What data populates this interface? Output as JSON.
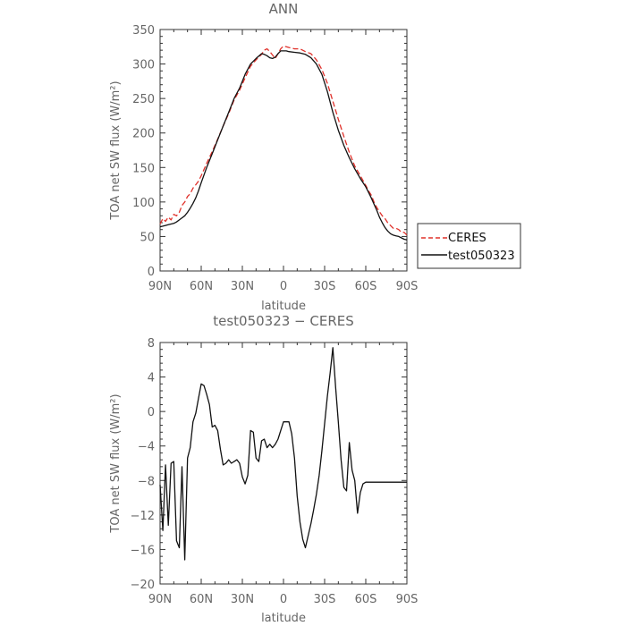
{
  "chart_data": [
    {
      "type": "line",
      "title": "ANN",
      "xlabel": "latitude",
      "ylabel": "TOA net SW flux (W/m²)",
      "xlim": [
        -90,
        90
      ],
      "ylim": [
        0,
        350
      ],
      "x_ticks": [
        -90,
        -60,
        -30,
        0,
        30,
        60,
        90
      ],
      "x_tick_labels": [
        "90N",
        "60N",
        "30N",
        "0",
        "30S",
        "60S",
        "90S"
      ],
      "y_ticks": [
        0,
        50,
        100,
        150,
        200,
        250,
        300,
        350
      ],
      "y_tick_labels": [
        "0",
        "50",
        "100",
        "150",
        "200",
        "250",
        "300",
        "350"
      ],
      "legend": {
        "placement": "right"
      },
      "series": [
        {
          "name": "CERES",
          "color": "#e0302a",
          "dash": "dashed",
          "x": [
            -90,
            -88,
            -86,
            -84,
            -82,
            -80,
            -78,
            -76,
            -74,
            -72,
            -70,
            -68,
            -66,
            -64,
            -62,
            -60,
            -56,
            -52,
            -48,
            -44,
            -40,
            -36,
            -32,
            -28,
            -24,
            -20,
            -16,
            -14,
            -12,
            -10,
            -8,
            -6,
            -4,
            -2,
            0,
            2,
            4,
            8,
            12,
            16,
            20,
            24,
            28,
            32,
            36,
            40,
            44,
            48,
            52,
            56,
            60,
            62,
            64,
            66,
            68,
            70,
            72,
            74,
            76,
            78,
            80,
            82,
            84,
            86,
            88,
            90
          ],
          "values": [
            68,
            76,
            72,
            78,
            74,
            82,
            80,
            85,
            95,
            100,
            108,
            112,
            120,
            125,
            130,
            138,
            156,
            173,
            191,
            210,
            228,
            248,
            262,
            280,
            297,
            306,
            314,
            320,
            322,
            318,
            313,
            308,
            315,
            322,
            326,
            325,
            324,
            322,
            322,
            318,
            315,
            306,
            292,
            272,
            246,
            220,
            195,
            172,
            152,
            138,
            124,
            116,
            110,
            100,
            92,
            86,
            80,
            76,
            70,
            66,
            62,
            62,
            60,
            56,
            56,
            52
          ]
        },
        {
          "name": "test050323",
          "color": "#111111",
          "dash": "solid",
          "x": [
            -90,
            -88,
            -86,
            -84,
            -82,
            -80,
            -78,
            -76,
            -74,
            -72,
            -70,
            -68,
            -66,
            -64,
            -62,
            -60,
            -56,
            -52,
            -48,
            -44,
            -40,
            -36,
            -32,
            -28,
            -24,
            -20,
            -16,
            -14,
            -12,
            -10,
            -8,
            -6,
            -4,
            -2,
            0,
            2,
            4,
            8,
            12,
            16,
            20,
            24,
            28,
            32,
            36,
            40,
            44,
            48,
            52,
            56,
            60,
            62,
            64,
            66,
            68,
            70,
            72,
            74,
            76,
            78,
            80,
            82,
            84,
            86,
            88,
            90
          ],
          "values": [
            64,
            65,
            66,
            67,
            68,
            69,
            71,
            74,
            77,
            80,
            85,
            91,
            98,
            106,
            116,
            128,
            150,
            170,
            190,
            210,
            230,
            250,
            265,
            285,
            300,
            308,
            315,
            314,
            312,
            309,
            308,
            310,
            315,
            319,
            319,
            319,
            318,
            317,
            316,
            314,
            309,
            300,
            285,
            260,
            230,
            204,
            182,
            164,
            148,
            134,
            122,
            114,
            106,
            97,
            88,
            78,
            70,
            63,
            58,
            54,
            52,
            51,
            50,
            48,
            46,
            45
          ]
        }
      ]
    },
    {
      "type": "line",
      "title": "test050323 − CERES",
      "xlabel": "latitude",
      "ylabel": "TOA net SW flux (W/m²)",
      "xlim": [
        -90,
        90
      ],
      "ylim": [
        -20,
        8
      ],
      "x_ticks": [
        -90,
        -60,
        -30,
        0,
        30,
        60,
        90
      ],
      "x_tick_labels": [
        "90N",
        "60N",
        "30N",
        "0",
        "30S",
        "60S",
        "90S"
      ],
      "y_ticks": [
        -20,
        -16,
        -12,
        -8,
        -4,
        0,
        4,
        8
      ],
      "y_tick_labels": [
        "−20",
        "−16",
        "−12",
        "−8",
        "−4",
        "0",
        "4",
        "8"
      ],
      "series": [
        {
          "color": "#111111",
          "dash": "solid",
          "x": [
            -90,
            -88,
            -86,
            -84,
            -82,
            -80,
            -78,
            -76,
            -74,
            -72,
            -70,
            -68,
            -66,
            -64,
            -62,
            -60,
            -58,
            -56,
            -54,
            -52,
            -50,
            -48,
            -46,
            -44,
            -42,
            -40,
            -38,
            -36,
            -34,
            -32,
            -30,
            -28,
            -26,
            -24,
            -22,
            -20,
            -18,
            -16,
            -14,
            -12,
            -10,
            -8,
            -6,
            -4,
            -2,
            0,
            2,
            4,
            6,
            8,
            10,
            12,
            14,
            16,
            18,
            20,
            22,
            24,
            26,
            28,
            30,
            32,
            34,
            36,
            38,
            40,
            42,
            44,
            46,
            48,
            50,
            52,
            54,
            56,
            58,
            60,
            62,
            64,
            66,
            68,
            70,
            72,
            74,
            76,
            78,
            80,
            82,
            84,
            86,
            88,
            90
          ],
          "values": [
            -8.5,
            -13.8,
            -6.2,
            -13.2,
            -6.0,
            -5.8,
            -15.0,
            -15.8,
            -6.4,
            -17.2,
            -5.4,
            -4.2,
            -1.2,
            -0.2,
            1.5,
            3.2,
            3.0,
            2.0,
            0.8,
            -1.8,
            -1.6,
            -2.2,
            -4.4,
            -6.2,
            -6.0,
            -5.6,
            -6.0,
            -5.8,
            -5.6,
            -6.0,
            -7.6,
            -8.4,
            -7.4,
            -2.2,
            -2.4,
            -5.4,
            -5.8,
            -3.4,
            -3.2,
            -4.2,
            -3.8,
            -4.2,
            -3.8,
            -3.2,
            -2.2,
            -1.2,
            -1.2,
            -1.2,
            -2.6,
            -5.4,
            -9.8,
            -12.8,
            -14.8,
            -15.8,
            -14.4,
            -13.0,
            -11.4,
            -9.6,
            -7.4,
            -4.6,
            -1.4,
            1.8,
            4.4,
            7.4,
            2.8,
            -1.2,
            -5.6,
            -8.8,
            -9.2,
            -3.6,
            -6.8,
            -8.0,
            -11.8,
            -9.4,
            -8.4,
            -8.2,
            -8.2,
            -8.2,
            -8.2,
            -8.2,
            -8.2,
            -8.2,
            -8.2,
            -8.2,
            -8.2,
            -8.2,
            -8.2,
            -8.2,
            -8.2,
            -8.2,
            -8.2
          ]
        }
      ]
    }
  ]
}
